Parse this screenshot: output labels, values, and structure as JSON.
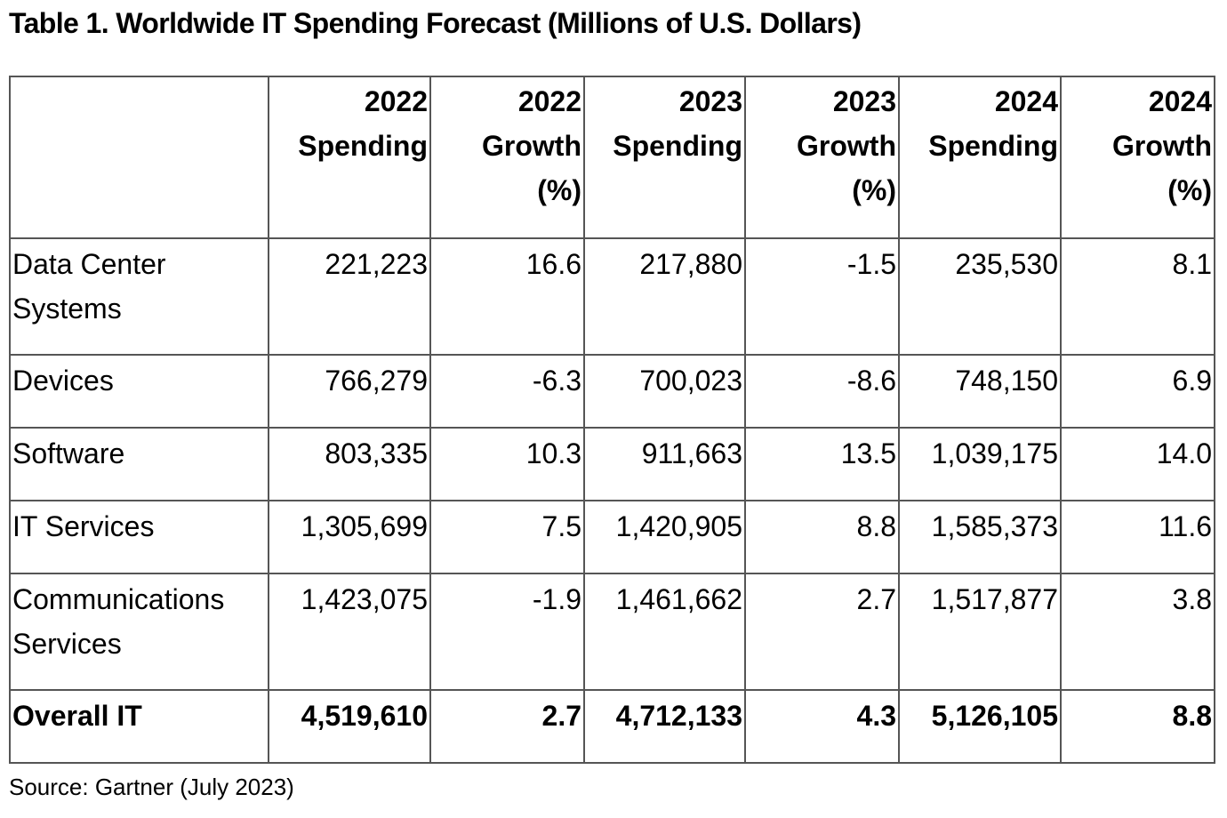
{
  "title": "Table 1. Worldwide IT Spending Forecast (Millions of U.S. Dollars)",
  "table": {
    "headers": [
      "",
      "2022 Spending",
      "2022 Growth (%)",
      "2023 Spending",
      "2023 Growth (%)",
      "2024 Spending",
      "2024 Growth (%)"
    ],
    "rows": [
      [
        "Data Center Systems",
        "221,223",
        "16.6",
        "217,880",
        "-1.5",
        "235,530",
        "8.1"
      ],
      [
        "Devices",
        "766,279",
        "-6.3",
        "700,023",
        "-8.6",
        "748,150",
        "6.9"
      ],
      [
        "Software",
        "803,335",
        "10.3",
        "911,663",
        "13.5",
        "1,039,175",
        "14.0"
      ],
      [
        "IT Services",
        "1,305,699",
        "7.5",
        "1,420,905",
        "8.8",
        "1,585,373",
        "11.6"
      ],
      [
        "Communications Services",
        "1,423,075",
        "-1.9",
        "1,461,662",
        "2.7",
        "1,517,877",
        "3.8"
      ],
      [
        "Overall IT",
        "4,519,610",
        "2.7",
        "4,712,133",
        "4.3",
        "5,126,105",
        "8.8"
      ]
    ]
  },
  "source": "Source: Gartner (July 2023)",
  "chart_data": {
    "type": "table",
    "title": "Table 1. Worldwide IT Spending Forecast (Millions of U.S. Dollars)",
    "columns": [
      "",
      "2022 Spending",
      "2022 Growth (%)",
      "2023 Spending",
      "2023 Growth (%)",
      "2024 Spending",
      "2024 Growth (%)"
    ],
    "rows": [
      {
        "segment": "Data Center Systems",
        "values": [
          221223,
          16.6,
          217880,
          -1.5,
          235530,
          8.1
        ]
      },
      {
        "segment": "Devices",
        "values": [
          766279,
          -6.3,
          700023,
          -8.6,
          748150,
          6.9
        ]
      },
      {
        "segment": "Software",
        "values": [
          803335,
          10.3,
          911663,
          13.5,
          1039175,
          14.0
        ]
      },
      {
        "segment": "IT Services",
        "values": [
          1305699,
          7.5,
          1420905,
          8.8,
          1585373,
          11.6
        ]
      },
      {
        "segment": "Communications Services",
        "values": [
          1423075,
          -1.9,
          1461662,
          2.7,
          1517877,
          3.8
        ]
      },
      {
        "segment": "Overall IT",
        "values": [
          4519610,
          2.7,
          4712133,
          4.3,
          5126105,
          8.8
        ]
      }
    ],
    "source": "Source: Gartner (July 2023)"
  }
}
